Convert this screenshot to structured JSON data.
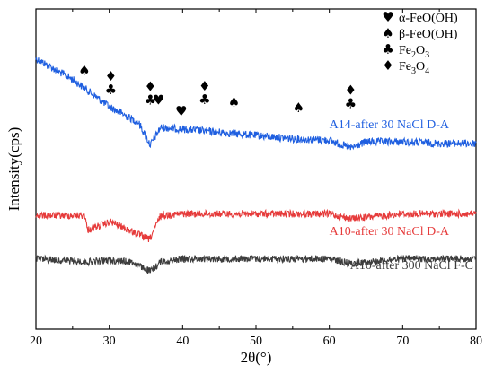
{
  "chart_data": {
    "type": "line",
    "xlabel": "2θ(°)",
    "ylabel": "Intensity(cps)",
    "xlim": [
      20,
      80
    ],
    "x_ticks": [
      "20",
      "30",
      "40",
      "50",
      "60",
      "70",
      "80"
    ],
    "y_ticks_shown": false,
    "grid": false,
    "legend_placement": "top-right",
    "legend": [
      {
        "symbol": "♥",
        "symbol_name": "heart",
        "label": "α-FeO(OH)"
      },
      {
        "symbol": "♠",
        "symbol_name": "spade",
        "label": "β-FeO(OH)"
      },
      {
        "symbol": "♣",
        "symbol_name": "club",
        "label": "Fe2O3"
      },
      {
        "symbol": "♦",
        "symbol_name": "diamond",
        "label": "Fe3O4"
      }
    ],
    "series": [
      {
        "name": "A14-after 30 NaCl D-A",
        "color": "#1f5fe0",
        "description_points": [
          [
            20,
            0.155
          ],
          [
            25,
            0.22
          ],
          [
            30,
            0.305
          ],
          [
            34,
            0.355
          ],
          [
            35.6,
            0.425
          ],
          [
            37,
            0.37
          ],
          [
            40,
            0.375
          ],
          [
            45,
            0.385
          ],
          [
            50,
            0.395
          ],
          [
            55,
            0.405
          ],
          [
            60,
            0.41
          ],
          [
            62.9,
            0.435
          ],
          [
            65,
            0.415
          ],
          [
            70,
            0.415
          ],
          [
            75,
            0.42
          ],
          [
            80,
            0.42
          ]
        ]
      },
      {
        "name": "A10-after 30 NaCl D-A",
        "color": "#e63b3b",
        "description_points": [
          [
            20,
            0.645
          ],
          [
            26.7,
            0.645
          ],
          [
            27,
            0.69
          ],
          [
            30.2,
            0.665
          ],
          [
            35.5,
            0.72
          ],
          [
            37,
            0.645
          ],
          [
            40,
            0.64
          ],
          [
            50,
            0.64
          ],
          [
            60,
            0.64
          ],
          [
            62.9,
            0.655
          ],
          [
            70,
            0.64
          ],
          [
            80,
            0.64
          ]
        ]
      },
      {
        "name": "A10-after 300 NaCl F-C",
        "color": "#3d3d3d",
        "description_points": [
          [
            20,
            0.78
          ],
          [
            27,
            0.79
          ],
          [
            30,
            0.785
          ],
          [
            33,
            0.79
          ],
          [
            35.6,
            0.82
          ],
          [
            37,
            0.79
          ],
          [
            40,
            0.78
          ],
          [
            50,
            0.78
          ],
          [
            60,
            0.78
          ],
          [
            62.9,
            0.795
          ],
          [
            70,
            0.78
          ],
          [
            80,
            0.78
          ]
        ]
      }
    ],
    "peak_markers": [
      {
        "symbol": "♠",
        "x": 26.6,
        "row": 1
      },
      {
        "symbol": "♦",
        "x": 30.2,
        "row": 2
      },
      {
        "symbol": "♣",
        "x": 30.2,
        "row": 1
      },
      {
        "symbol": "♦",
        "x": 35.6,
        "row": 4
      },
      {
        "symbol": "♣",
        "x": 35.6,
        "row": 3
      },
      {
        "symbol": "♥",
        "x": 36.7,
        "row": 2
      },
      {
        "symbol": "♥",
        "x": 39.8,
        "row": 1
      },
      {
        "symbol": "♦",
        "x": 43.0,
        "row": 3
      },
      {
        "symbol": "♣",
        "x": 43.0,
        "row": 2
      },
      {
        "symbol": "♠",
        "x": 47.0,
        "row": 2
      },
      {
        "symbol": "♠",
        "x": 55.8,
        "row": 2
      },
      {
        "symbol": "♦",
        "x": 62.9,
        "row": 4
      },
      {
        "symbol": "♣",
        "x": 62.9,
        "row": 3
      }
    ]
  }
}
